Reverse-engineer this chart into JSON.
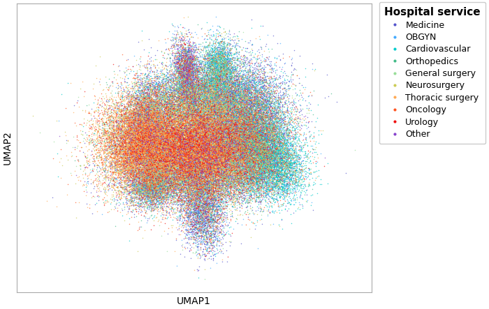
{
  "title": "Hospital service",
  "xlabel": "UMAP1",
  "ylabel": "UMAP2",
  "categories": [
    "Medicine",
    "OBGYN",
    "Cardiovascular",
    "Orthopedics",
    "General surgery",
    "Neurosurgery",
    "Thoracic surgery",
    "Oncology",
    "Urology",
    "Other"
  ],
  "colors": [
    "#5555cc",
    "#44aaff",
    "#00cccc",
    "#44bb88",
    "#99dd99",
    "#cccc55",
    "#ffaa55",
    "#ff5522",
    "#ee1111",
    "#8844cc"
  ],
  "n_points": 80000,
  "point_size": 1.2,
  "alpha": 0.7,
  "figsize": [
    7.0,
    4.43
  ],
  "dpi": 100,
  "background_color": "#ffffff",
  "legend_title_fontsize": 11,
  "legend_fontsize": 9,
  "axis_label_fontsize": 10
}
